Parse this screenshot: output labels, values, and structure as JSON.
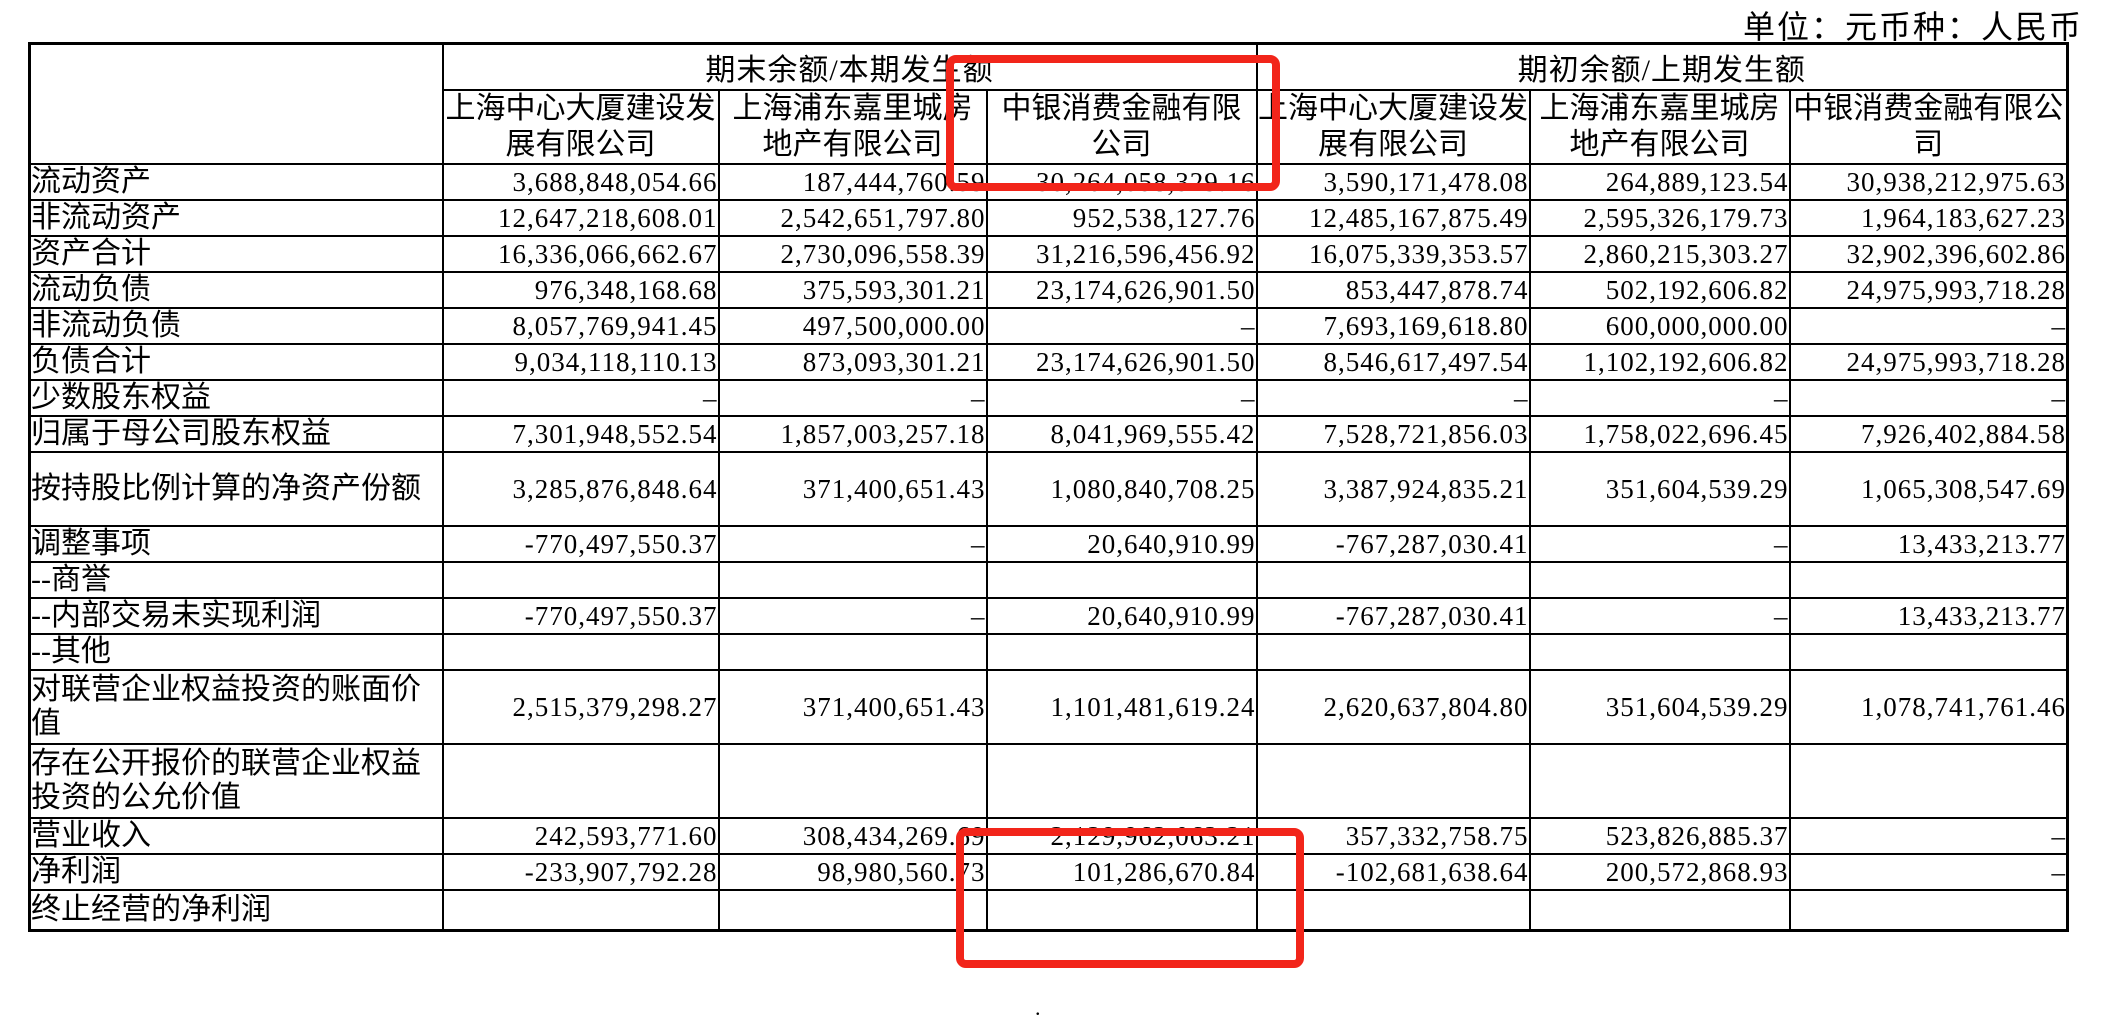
{
  "page": {
    "unit_label": "单位：元币种：人民币",
    "stray_dot": "."
  },
  "annotations": {
    "highlight_color": "#f2251a",
    "highlighted_company": "中银消费金融有限公司"
  },
  "table": {
    "group_headers": {
      "end": "期末余额/本期发生额",
      "begin": "期初余额/上期发生额"
    },
    "company_headers": [
      "上海中心大厦建设发展有限公司",
      "上海浦东嘉里城房地产有限公司",
      "中银消费金融有限公司",
      "上海中心大厦建设发展有限公司",
      "上海浦东嘉里城房地产有限公司",
      "中银消费金融有限公司"
    ],
    "rows": [
      {
        "label": "流动资产",
        "tall": false,
        "values": [
          "3,688,848,054.66",
          "187,444,760.59",
          "30,264,058,329.16",
          "3,590,171,478.08",
          "264,889,123.54",
          "30,938,212,975.63"
        ]
      },
      {
        "label": "非流动资产",
        "tall": false,
        "values": [
          "12,647,218,608.01",
          "2,542,651,797.80",
          "952,538,127.76",
          "12,485,167,875.49",
          "2,595,326,179.73",
          "1,964,183,627.23"
        ]
      },
      {
        "label": "资产合计",
        "tall": false,
        "values": [
          "16,336,066,662.67",
          "2,730,096,558.39",
          "31,216,596,456.92",
          "16,075,339,353.57",
          "2,860,215,303.27",
          "32,902,396,602.86"
        ]
      },
      {
        "label": "流动负债",
        "tall": false,
        "values": [
          "976,348,168.68",
          "375,593,301.21",
          "23,174,626,901.50",
          "853,447,878.74",
          "502,192,606.82",
          "24,975,993,718.28"
        ]
      },
      {
        "label": "非流动负债",
        "tall": false,
        "values": [
          "8,057,769,941.45",
          "497,500,000.00",
          "–",
          "7,693,169,618.80",
          "600,000,000.00",
          "–"
        ]
      },
      {
        "label": "负债合计",
        "tall": false,
        "values": [
          "9,034,118,110.13",
          "873,093,301.21",
          "23,174,626,901.50",
          "8,546,617,497.54",
          "1,102,192,606.82",
          "24,975,993,718.28"
        ]
      },
      {
        "label": "少数股东权益",
        "tall": false,
        "values": [
          "–",
          "–",
          "–",
          "–",
          "–",
          "–"
        ]
      },
      {
        "label": "归属于母公司股东权益",
        "tall": false,
        "values": [
          "7,301,948,552.54",
          "1,857,003,257.18",
          "8,041,969,555.42",
          "7,528,721,856.03",
          "1,758,022,696.45",
          "7,926,402,884.58"
        ]
      },
      {
        "label": "按持股比例计算的净资产份额",
        "tall": true,
        "values": [
          "3,285,876,848.64",
          "371,400,651.43",
          "1,080,840,708.25",
          "3,387,924,835.21",
          "351,604,539.29",
          "1,065,308,547.69"
        ]
      },
      {
        "label": "调整事项",
        "tall": false,
        "values": [
          "-770,497,550.37",
          "–",
          "20,640,910.99",
          "-767,287,030.41",
          "–",
          "13,433,213.77"
        ]
      },
      {
        "label": "--商誉",
        "tall": false,
        "values": [
          "",
          "",
          "",
          "",
          "",
          ""
        ]
      },
      {
        "label": "--内部交易未实现利润",
        "tall": false,
        "values": [
          "-770,497,550.37",
          "–",
          "20,640,910.99",
          "-767,287,030.41",
          "–",
          "13,433,213.77"
        ]
      },
      {
        "label": "--其他",
        "tall": false,
        "values": [
          "",
          "",
          "",
          "",
          "",
          ""
        ]
      },
      {
        "label": "对联营企业权益投资的账面价值",
        "tall": true,
        "values": [
          "2,515,379,298.27",
          "371,400,651.43",
          "1,101,481,619.24",
          "2,620,637,804.80",
          "351,604,539.29",
          "1,078,741,761.46"
        ]
      },
      {
        "label": "存在公开报价的联营企业权益投资的公允价值",
        "tall": true,
        "values": [
          "",
          "",
          "",
          "",
          "",
          ""
        ]
      },
      {
        "label": "营业收入",
        "tall": false,
        "values": [
          "242,593,771.60",
          "308,434,269.69",
          "2,129,962,063.21",
          "357,332,758.75",
          "523,826,885.37",
          "–"
        ]
      },
      {
        "label": "净利润",
        "tall": false,
        "values": [
          "-233,907,792.28",
          "98,980,560.73",
          "101,286,670.84",
          "-102,681,638.64",
          "200,572,868.93",
          "–"
        ]
      },
      {
        "label": "终止经营的净利润",
        "tall": false,
        "last": true,
        "values": [
          "",
          "",
          "",
          "",
          "",
          ""
        ]
      }
    ]
  }
}
